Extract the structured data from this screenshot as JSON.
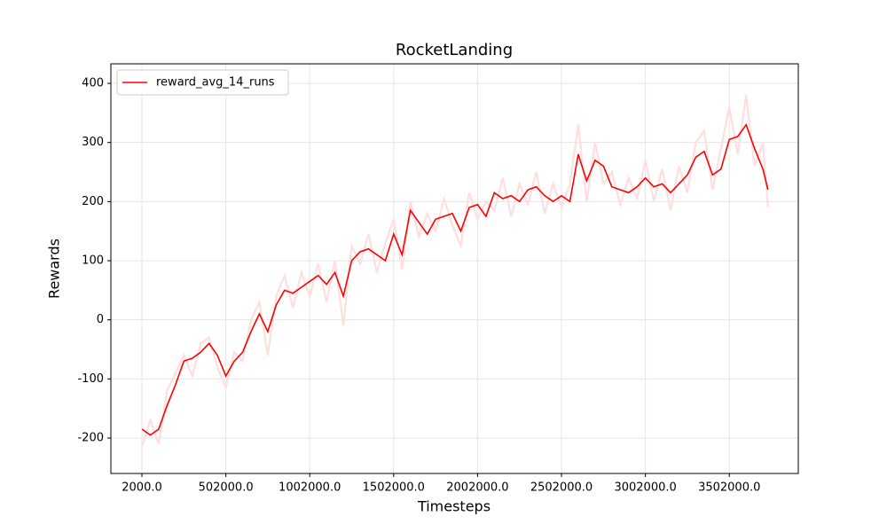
{
  "chart_data": {
    "type": "line",
    "title": "RocketLanding",
    "xlabel": "Timesteps",
    "ylabel": "Rewards",
    "x": [
      2000,
      52000,
      102000,
      152000,
      202000,
      252000,
      302000,
      352000,
      402000,
      452000,
      502000,
      552000,
      602000,
      652000,
      702000,
      752000,
      802000,
      852000,
      902000,
      952000,
      1002000,
      1052000,
      1102000,
      1152000,
      1202000,
      1252000,
      1302000,
      1352000,
      1402000,
      1452000,
      1502000,
      1552000,
      1602000,
      1652000,
      1702000,
      1752000,
      1802000,
      1852000,
      1902000,
      1952000,
      2002000,
      2052000,
      2102000,
      2152000,
      2202000,
      2252000,
      2302000,
      2352000,
      2402000,
      2452000,
      2502000,
      2552000,
      2602000,
      2652000,
      2702000,
      2752000,
      2802000,
      2852000,
      2902000,
      2952000,
      3002000,
      3052000,
      3102000,
      3152000,
      3202000,
      3252000,
      3302000,
      3352000,
      3402000,
      3452000,
      3502000,
      3552000,
      3602000,
      3652000,
      3702000,
      3732000
    ],
    "series": [
      {
        "color": "#ffdede",
        "values": [
          -215,
          -170,
          -210,
          -120,
          -90,
          -60,
          -95,
          -40,
          -30,
          -80,
          -115,
          -55,
          -70,
          0,
          30,
          -60,
          40,
          75,
          20,
          80,
          40,
          95,
          30,
          100,
          -10,
          125,
          95,
          145,
          80,
          130,
          170,
          85,
          200,
          140,
          180,
          150,
          205,
          160,
          125,
          215,
          170,
          200,
          185,
          240,
          175,
          230,
          195,
          250,
          180,
          230,
          190,
          230,
          330,
          200,
          300,
          230,
          250,
          195,
          240,
          205,
          270,
          200,
          255,
          185,
          260,
          215,
          300,
          320,
          220,
          290,
          360,
          280,
          380,
          260,
          300,
          190
        ]
      },
      {
        "name": "reward_avg_14_runs",
        "color": "#ff0000",
        "values": [
          -185,
          -195,
          -185,
          -145,
          -110,
          -70,
          -65,
          -55,
          -40,
          -60,
          -95,
          -70,
          -55,
          -20,
          10,
          -20,
          25,
          50,
          45,
          55,
          65,
          75,
          60,
          80,
          40,
          100,
          115,
          120,
          110,
          100,
          145,
          110,
          185,
          165,
          145,
          170,
          175,
          180,
          150,
          190,
          195,
          175,
          215,
          205,
          210,
          200,
          220,
          225,
          210,
          200,
          210,
          200,
          280,
          235,
          270,
          260,
          225,
          220,
          215,
          225,
          240,
          225,
          230,
          215,
          230,
          245,
          275,
          285,
          245,
          255,
          305,
          310,
          330,
          290,
          255,
          220
        ]
      }
    ],
    "xlim": [
      -183000,
      3913000
    ],
    "ylim": [
      -260,
      433
    ],
    "xticks": [
      {
        "value": 2000,
        "label": "2000.0"
      },
      {
        "value": 502000,
        "label": "502000.0"
      },
      {
        "value": 1002000,
        "label": "1002000.0"
      },
      {
        "value": 1502000,
        "label": "1502000.0"
      },
      {
        "value": 2002000,
        "label": "2002000.0"
      },
      {
        "value": 2502000,
        "label": "2502000.0"
      },
      {
        "value": 3002000,
        "label": "3002000.0"
      },
      {
        "value": 3502000,
        "label": "3502000.0"
      }
    ],
    "yticks": [
      -200,
      -100,
      0,
      100,
      200,
      300,
      400
    ],
    "grid": true,
    "legend": "upper-left"
  }
}
